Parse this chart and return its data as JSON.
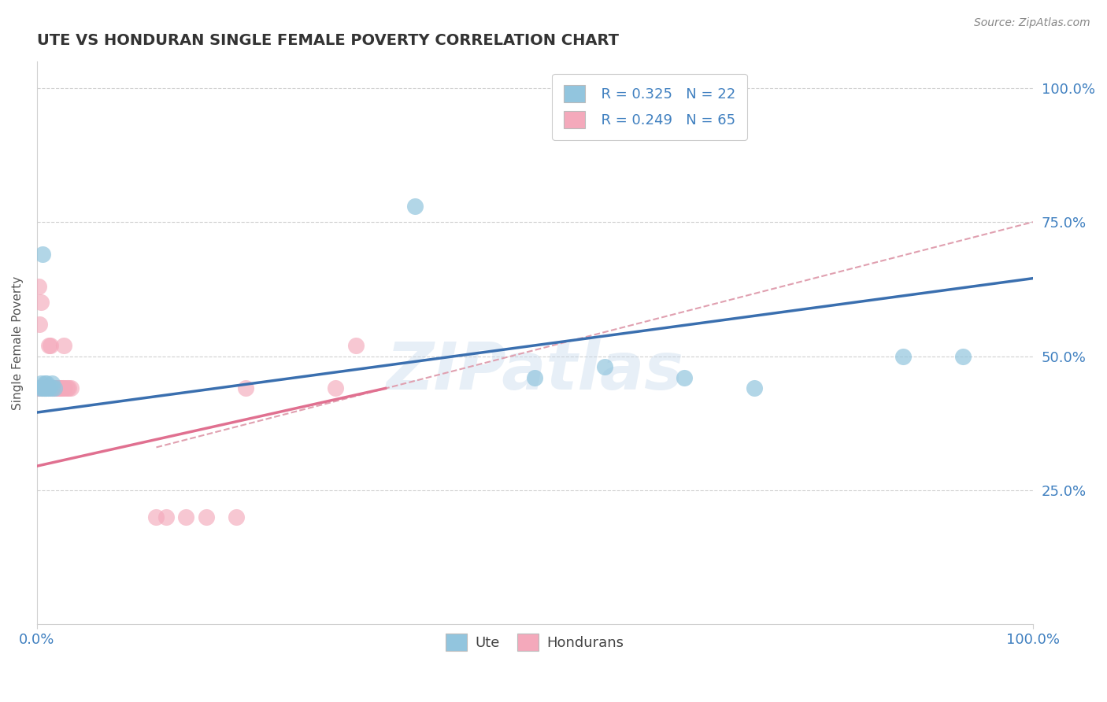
{
  "title": "UTE VS HONDURAN SINGLE FEMALE POVERTY CORRELATION CHART",
  "source": "Source: ZipAtlas.com",
  "ylabel": "Single Female Poverty",
  "watermark": "ZIPatlas",
  "ute_color": "#92c5de",
  "honduran_color": "#f4a9bb",
  "ute_line_color": "#3a6faf",
  "honduran_line_color": "#e07090",
  "dashed_line_color": "#e0a0b0",
  "legend_R_ute": "R = 0.325",
  "legend_N_ute": "N = 22",
  "legend_R_hon": "R = 0.249",
  "legend_N_hon": "N = 65",
  "ute_x": [
    0.003,
    0.004,
    0.005,
    0.006,
    0.007,
    0.008,
    0.008,
    0.009,
    0.01,
    0.01,
    0.011,
    0.012,
    0.015,
    0.015,
    0.018,
    0.38,
    0.5,
    0.57,
    0.65,
    0.72,
    0.87,
    0.93
  ],
  "ute_y": [
    0.44,
    0.45,
    0.44,
    0.69,
    0.44,
    0.44,
    0.45,
    0.44,
    0.44,
    0.45,
    0.44,
    0.44,
    0.44,
    0.45,
    0.44,
    0.78,
    0.46,
    0.48,
    0.46,
    0.44,
    0.5,
    0.5
  ],
  "hon_x": [
    0.002,
    0.002,
    0.002,
    0.003,
    0.003,
    0.003,
    0.004,
    0.004,
    0.004,
    0.005,
    0.005,
    0.005,
    0.005,
    0.006,
    0.006,
    0.006,
    0.006,
    0.007,
    0.007,
    0.007,
    0.007,
    0.007,
    0.008,
    0.008,
    0.008,
    0.008,
    0.009,
    0.009,
    0.01,
    0.01,
    0.01,
    0.01,
    0.011,
    0.011,
    0.012,
    0.013,
    0.013,
    0.014,
    0.014,
    0.015,
    0.015,
    0.016,
    0.016,
    0.017,
    0.018,
    0.019,
    0.02,
    0.021,
    0.022,
    0.023,
    0.025,
    0.026,
    0.027,
    0.028,
    0.03,
    0.032,
    0.034,
    0.12,
    0.13,
    0.15,
    0.17,
    0.2,
    0.21,
    0.3,
    0.32
  ],
  "hon_y": [
    0.44,
    0.44,
    0.63,
    0.44,
    0.56,
    0.44,
    0.44,
    0.44,
    0.6,
    0.44,
    0.44,
    0.44,
    0.44,
    0.44,
    0.44,
    0.44,
    0.44,
    0.44,
    0.44,
    0.44,
    0.44,
    0.44,
    0.44,
    0.44,
    0.44,
    0.44,
    0.44,
    0.44,
    0.44,
    0.44,
    0.44,
    0.44,
    0.44,
    0.44,
    0.52,
    0.44,
    0.44,
    0.52,
    0.44,
    0.44,
    0.44,
    0.44,
    0.44,
    0.44,
    0.44,
    0.44,
    0.44,
    0.44,
    0.44,
    0.44,
    0.44,
    0.44,
    0.52,
    0.44,
    0.44,
    0.44,
    0.44,
    0.2,
    0.2,
    0.2,
    0.2,
    0.2,
    0.44,
    0.44,
    0.52
  ],
  "ute_line_x0": 0.0,
  "ute_line_y0": 0.395,
  "ute_line_x1": 1.0,
  "ute_line_y1": 0.645,
  "hon_line_x0": 0.0,
  "hon_line_y0": 0.295,
  "hon_line_x1": 0.35,
  "hon_line_y1": 0.44,
  "dashed_line_x0": 0.12,
  "dashed_line_y0": 0.33,
  "dashed_line_x1": 1.0,
  "dashed_line_y1": 0.75,
  "xlim": [
    0,
    1
  ],
  "ylim": [
    0,
    1.05
  ],
  "yticks": [
    0.25,
    0.5,
    0.75,
    1.0
  ],
  "ytick_labels": [
    "25.0%",
    "50.0%",
    "75.0%",
    "100.0%"
  ],
  "xtick_labels": [
    "0.0%",
    "100.0%"
  ],
  "grid_color": "#d0d0d0",
  "tick_color": "#4080c0"
}
